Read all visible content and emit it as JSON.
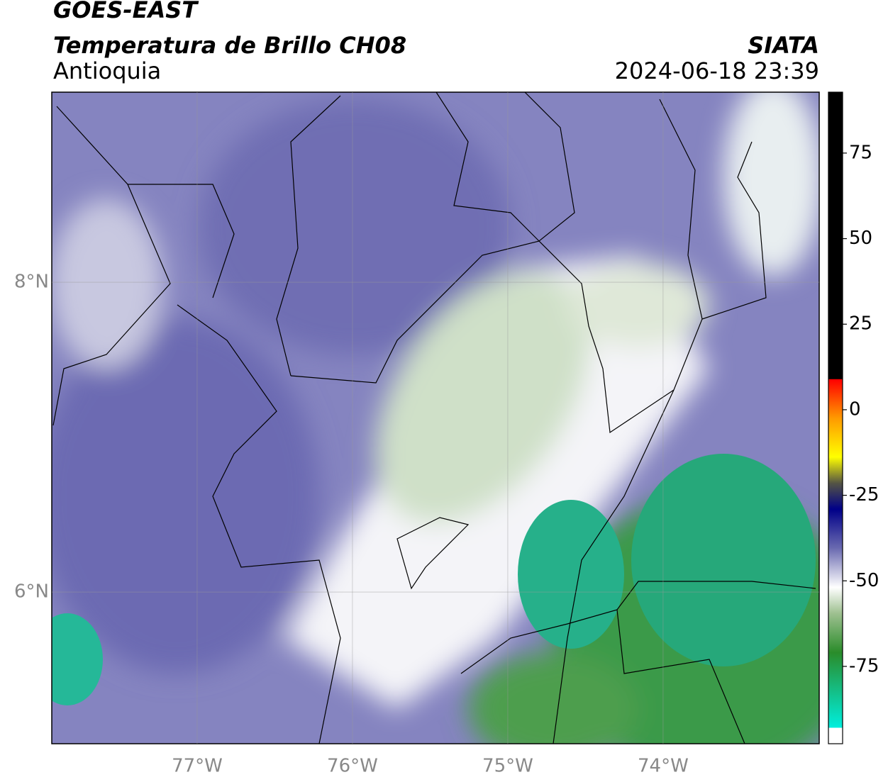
{
  "header": {
    "title": "GOES-EAST",
    "subtitle": "Temperatura de Brillo CH08",
    "region": "Antioquia",
    "source": "SIATA",
    "timestamp": "2024-06-18 23:39"
  },
  "map": {
    "xlim": [
      -77.936,
      -72.995
    ],
    "ylim": [
      5.021,
      9.227
    ],
    "xticks": [
      {
        "value": -77,
        "label": "77°W"
      },
      {
        "value": -76,
        "label": "76°W"
      },
      {
        "value": -75,
        "label": "75°W"
      },
      {
        "value": -74,
        "label": "74°W"
      }
    ],
    "yticks": [
      {
        "value": 8,
        "label": "8°N"
      },
      {
        "value": 6,
        "label": "6°N"
      }
    ],
    "grid": true
  },
  "colorbar": {
    "lim": [
      -97.6,
      92.8
    ],
    "ticks": [
      75,
      50,
      25,
      0,
      -25,
      -50,
      -75
    ]
  }
}
